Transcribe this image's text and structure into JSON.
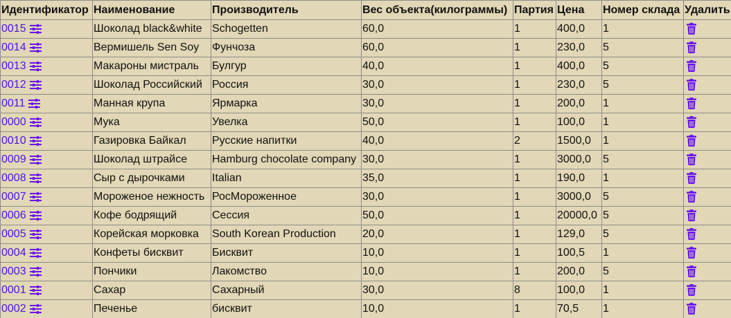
{
  "table": {
    "headers": [
      "Идентификатор",
      "Наименование",
      "Производитель",
      "Вес объекта(килограммы)",
      "Партия",
      "Цена",
      "Номер склада",
      "Удалить"
    ],
    "rows": [
      {
        "id": "0015",
        "name": "Шоколад black&white",
        "maker": "Schogetten",
        "weight": "60,0",
        "batch": "1",
        "price": "400,0",
        "warehouse": "1"
      },
      {
        "id": "0014",
        "name": "Вермишель Sen Soy",
        "maker": "Фунчоза",
        "weight": "60,0",
        "batch": "1",
        "price": "230,0",
        "warehouse": "5"
      },
      {
        "id": "0013",
        "name": "Макароны мистраль",
        "maker": "Булгур",
        "weight": "40,0",
        "batch": "1",
        "price": "400,0",
        "warehouse": "5"
      },
      {
        "id": "0012",
        "name": "Шоколад Российский",
        "maker": "Россия",
        "weight": "30,0",
        "batch": "1",
        "price": "230,0",
        "warehouse": "5"
      },
      {
        "id": "0011",
        "name": "Манная крупа",
        "maker": "Ярмарка",
        "weight": "30,0",
        "batch": "1",
        "price": "200,0",
        "warehouse": "1"
      },
      {
        "id": "0000",
        "name": "Мука",
        "maker": "Увелка",
        "weight": "50,0",
        "batch": "1",
        "price": "100,0",
        "warehouse": "1"
      },
      {
        "id": "0010",
        "name": "Газировка Байкал",
        "maker": "Русские напитки",
        "weight": "40,0",
        "batch": "2",
        "price": "1500,0",
        "warehouse": "1"
      },
      {
        "id": "0009",
        "name": "Шоколад штрайсе",
        "maker": "Hamburg chocolate company",
        "weight": "30,0",
        "batch": "1",
        "price": "3000,0",
        "warehouse": "5"
      },
      {
        "id": "0008",
        "name": "Сыр с дырочками",
        "maker": "Italian",
        "weight": "35,0",
        "batch": "1",
        "price": "190,0",
        "warehouse": "1"
      },
      {
        "id": "0007",
        "name": "Мороженое нежность",
        "maker": "РосМороженное",
        "weight": "30,0",
        "batch": "1",
        "price": "3000,0",
        "warehouse": "5"
      },
      {
        "id": "0006",
        "name": "Кофе бодрящий",
        "maker": "Сессия",
        "weight": "50,0",
        "batch": "1",
        "price": "20000,0",
        "warehouse": "5"
      },
      {
        "id": "0005",
        "name": "Корейская морковка",
        "maker": "South Korean Production",
        "weight": "20,0",
        "batch": "1",
        "price": "129,0",
        "warehouse": "5"
      },
      {
        "id": "0004",
        "name": "Конфеты бисквит",
        "maker": "Бисквит",
        "weight": "10,0",
        "batch": "1",
        "price": "100,5",
        "warehouse": "1"
      },
      {
        "id": "0003",
        "name": "Пончики",
        "maker": "Лакомство",
        "weight": "10,0",
        "batch": "1",
        "price": "200,0",
        "warehouse": "5"
      },
      {
        "id": "0001",
        "name": "Сахар",
        "maker": "Сахарный",
        "weight": "30,0",
        "batch": "8",
        "price": "100,0",
        "warehouse": "1"
      },
      {
        "id": "0002",
        "name": "Печенье",
        "maker": "бисквит",
        "weight": "10,0",
        "batch": "1",
        "price": "70,5",
        "warehouse": "1"
      }
    ]
  },
  "colors": {
    "background": "#e2d7b6",
    "link": "#4a16e6",
    "icon": "#6a14f0",
    "border": "#8c8c8c"
  },
  "icons": {
    "edit": "sliders-icon",
    "delete": "trash-icon"
  }
}
